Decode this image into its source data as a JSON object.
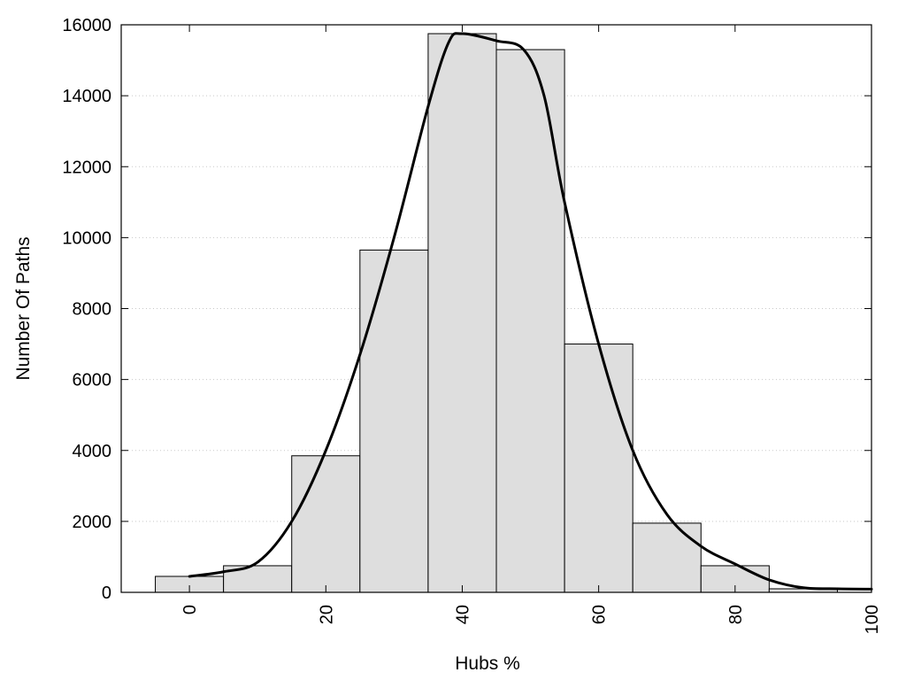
{
  "chart_data": {
    "type": "bar",
    "title": "",
    "xlabel": "Hubs %",
    "ylabel": "Number Of Paths",
    "xlim": [
      -10,
      100
    ],
    "ylim": [
      0,
      16000
    ],
    "x_ticks": [
      0,
      20,
      40,
      60,
      80,
      100
    ],
    "y_ticks": [
      0,
      2000,
      4000,
      6000,
      8000,
      10000,
      12000,
      14000,
      16000
    ],
    "grid": "horizontal dotted",
    "bar_width": 10,
    "bars": [
      {
        "x": 0,
        "value": 450
      },
      {
        "x": 10,
        "value": 750
      },
      {
        "x": 20,
        "value": 3850
      },
      {
        "x": 30,
        "value": 9650
      },
      {
        "x": 40,
        "value": 15750
      },
      {
        "x": 50,
        "value": 15300
      },
      {
        "x": 60,
        "value": 7000
      },
      {
        "x": 70,
        "value": 1950
      },
      {
        "x": 80,
        "value": 750
      },
      {
        "x": 90,
        "value": 100
      }
    ],
    "series": [
      {
        "type": "line",
        "x": [
          0,
          5,
          10,
          15,
          20,
          25,
          30,
          35,
          38,
          40,
          45,
          49,
          52,
          55,
          60,
          65,
          70,
          75,
          80,
          85,
          90,
          95,
          100
        ],
        "y": [
          450,
          580,
          850,
          2000,
          4000,
          6700,
          10000,
          13700,
          15500,
          15750,
          15550,
          15300,
          14000,
          11000,
          7000,
          4000,
          2200,
          1300,
          800,
          350,
          130,
          100,
          90
        ]
      }
    ],
    "colors": {
      "bar_fill": "#dedede",
      "bar_stroke": "#000000",
      "line": "#000000",
      "grid": "#c8c8c8"
    }
  }
}
